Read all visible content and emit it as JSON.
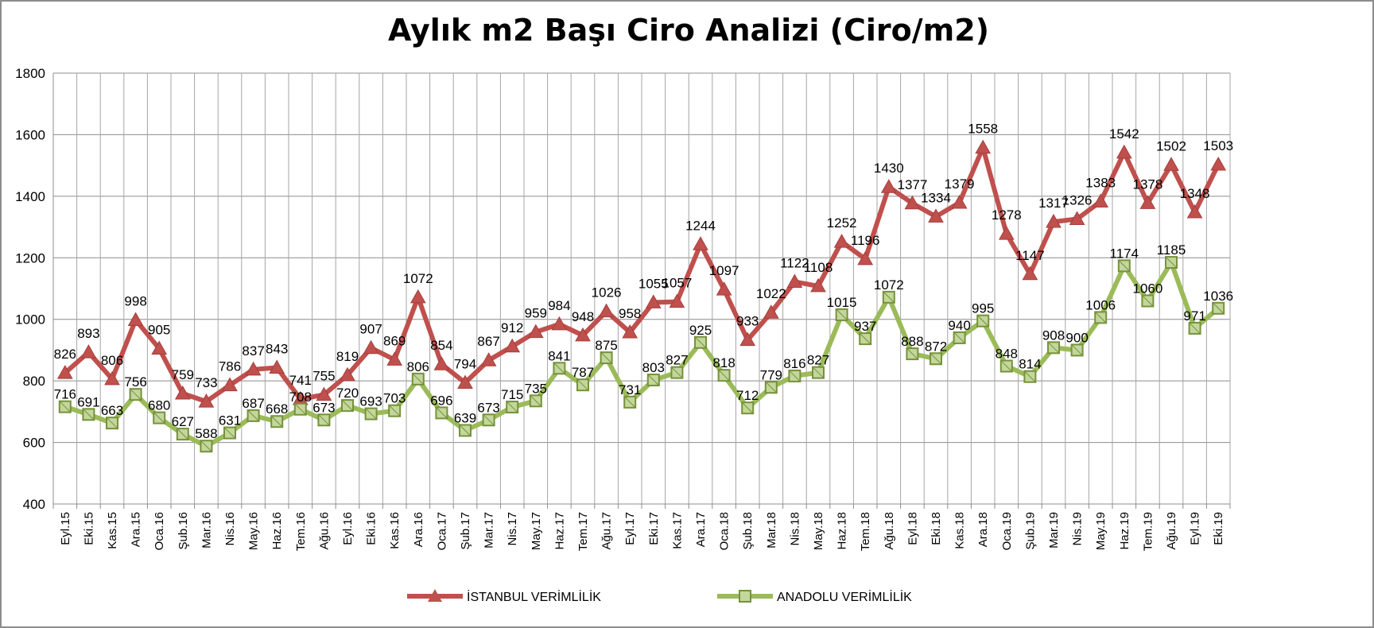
{
  "chart_data": {
    "type": "line",
    "title": "Aylık m2 Başı Ciro Analizi (Ciro/m2)",
    "xlabel": "",
    "ylabel": "",
    "ylim": [
      400,
      1800
    ],
    "yticks": [
      "400",
      "600",
      "800",
      "1000",
      "1200",
      "1400",
      "1600",
      "1800"
    ],
    "grid": true,
    "legend_position": "bottom",
    "categories": [
      "Eyl.15",
      "Eki.15",
      "Kas.15",
      "Ara.15",
      "Oca.16",
      "Şub.16",
      "Mar.16",
      "Nis.16",
      "May.16",
      "Haz.16",
      "Tem.16",
      "Ağu.16",
      "Eyl.16",
      "Eki.16",
      "Kas.16",
      "Ara.16",
      "Oca.17",
      "Şub.17",
      "Mar.17",
      "Nis.17",
      "May.17",
      "Haz.17",
      "Tem.17",
      "Ağu.17",
      "Eyl.17",
      "Eki.17",
      "Kas.17",
      "Ara.17",
      "Oca.18",
      "Şub.18",
      "Mar.18",
      "Nis.18",
      "May.18",
      "Haz.18",
      "Tem.18",
      "Ağu.18",
      "Eyl.18",
      "Eki.18",
      "Kas.18",
      "Ara.18",
      "Oca.19",
      "Şub.19",
      "Mar.19",
      "Nis.19",
      "May.19",
      "Haz.19",
      "Tem.19",
      "Ağu.19",
      "Eyl.19",
      "Eki.19"
    ],
    "series": [
      {
        "name": "İSTANBUL VERİMLİLİK",
        "color": "#c0504d",
        "marker": "triangle",
        "values": [
          826,
          893,
          806,
          998,
          905,
          759,
          733,
          786,
          837,
          843,
          741,
          755,
          819,
          907,
          869,
          1072,
          854,
          794,
          867,
          912,
          959,
          984,
          948,
          1026,
          958,
          1055,
          1057,
          1244,
          1097,
          933,
          1022,
          1122,
          1108,
          1252,
          1196,
          1430,
          1377,
          1334,
          1379,
          1558,
          1278,
          1147,
          1317,
          1326,
          1383,
          1542,
          1378,
          1502,
          1348,
          1503
        ]
      },
      {
        "name": "ANADOLU VERİMLİLİK",
        "color": "#9bbb59",
        "marker": "square",
        "values": [
          716,
          691,
          663,
          756,
          680,
          627,
          588,
          631,
          687,
          668,
          708,
          673,
          720,
          693,
          703,
          806,
          696,
          639,
          673,
          715,
          735,
          841,
          787,
          875,
          731,
          803,
          827,
          925,
          818,
          712,
          779,
          816,
          827,
          1015,
          937,
          1072,
          888,
          872,
          940,
          995,
          848,
          814,
          908,
          900,
          1006,
          1174,
          1060,
          1185,
          971,
          1036
        ]
      }
    ]
  }
}
